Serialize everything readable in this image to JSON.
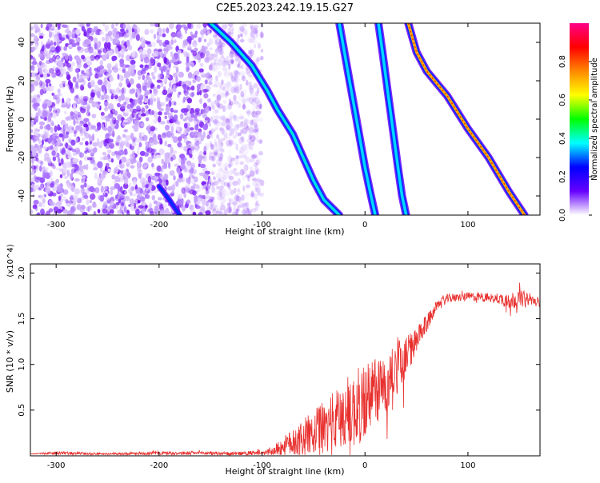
{
  "figure": {
    "title": "C2E5.2023.242.19.15.G27"
  },
  "chart_data": [
    {
      "type": "heatmap",
      "xlabel": "Height of straight line (km)",
      "ylabel": "Frequency (Hz)",
      "xlim": [
        -325,
        170
      ],
      "ylim": [
        -50,
        50
      ],
      "xticks": [
        -300,
        -200,
        -100,
        0,
        100
      ],
      "yticks": [
        -40,
        -20,
        0,
        20,
        40
      ],
      "grid": false,
      "colorbar": {
        "label": "Normalized spectral amplitude",
        "range": [
          0,
          1
        ],
        "ticks": [
          "0.0",
          "0.2",
          "0.4",
          "0.6",
          "0.8"
        ],
        "colors": [
          "#ffffff",
          "#6600ff",
          "#0000ff",
          "#00ffff",
          "#00ff00",
          "#ffff00",
          "#ff8800",
          "#ff0000",
          "#ff0088"
        ]
      },
      "traces": [
        {
          "points": [
            [
              -150,
              50
            ],
            [
              -130,
              40
            ],
            [
              -110,
              28
            ],
            [
              -95,
              15
            ],
            [
              -85,
              5
            ],
            [
              -70,
              -8
            ],
            [
              -60,
              -20
            ],
            [
              -50,
              -32
            ],
            [
              -40,
              -42
            ],
            [
              -25,
              -50
            ]
          ]
        },
        {
          "points": [
            [
              -25,
              50
            ],
            [
              -20,
              35
            ],
            [
              -15,
              20
            ],
            [
              -10,
              5
            ],
            [
              -5,
              -10
            ],
            [
              0,
              -25
            ],
            [
              5,
              -38
            ],
            [
              10,
              -50
            ]
          ]
        },
        {
          "points": [
            [
              13,
              50
            ],
            [
              17,
              35
            ],
            [
              22,
              15
            ],
            [
              27,
              -5
            ],
            [
              32,
              -25
            ],
            [
              36,
              -40
            ],
            [
              40,
              -50
            ]
          ]
        },
        {
          "points": [
            [
              42,
              50
            ],
            [
              50,
              35
            ],
            [
              60,
              25
            ],
            [
              80,
              12
            ],
            [
              100,
              -5
            ],
            [
              120,
              -20
            ],
            [
              140,
              -38
            ],
            [
              155,
              -50
            ]
          ]
        },
        {
          "points": [
            [
              -200,
              -35
            ],
            [
              -190,
              -42
            ],
            [
              -180,
              -50
            ]
          ]
        }
      ]
    },
    {
      "type": "line",
      "xlabel": "Height of straight line (km)",
      "ylabel": "SNR (10 * v/v)",
      "scale_note": "(x10^4)",
      "xlim": [
        -325,
        170
      ],
      "ylim": [
        0,
        2.1
      ],
      "xticks": [
        -300,
        -200,
        -100,
        0,
        100
      ],
      "yticks": [
        0.5,
        1.0,
        1.5,
        2.0
      ],
      "ytick_labels": [
        "0.5",
        "1.0",
        "1.5",
        "2.0"
      ],
      "grid": false,
      "color": "#e8302e",
      "series": [
        {
          "name": "",
          "x": [
            -325,
            -300,
            -250,
            -200,
            -150,
            -130,
            -100,
            -90,
            -80,
            -70,
            -60,
            -50,
            -40,
            -30,
            -20,
            -10,
            0,
            10,
            20,
            30,
            40,
            50,
            60,
            70,
            80,
            90,
            100,
            110,
            120,
            130,
            140,
            150,
            160,
            170
          ],
          "y": [
            0.02,
            0.03,
            0.02,
            0.03,
            0.03,
            0.02,
            0.03,
            0.05,
            0.1,
            0.15,
            0.2,
            0.25,
            0.3,
            0.35,
            0.45,
            0.5,
            0.6,
            0.7,
            0.8,
            0.95,
            1.1,
            1.25,
            1.45,
            1.65,
            1.72,
            1.73,
            1.74,
            1.74,
            1.73,
            1.72,
            1.7,
            1.72,
            1.71,
            1.68
          ],
          "noise": [
            0,
            0.02,
            0.01,
            0.02,
            0.02,
            0.02,
            0.03,
            0.05,
            0.1,
            0.15,
            0.2,
            0.25,
            0.3,
            0.35,
            0.4,
            0.42,
            0.45,
            0.4,
            0.35,
            0.3,
            0.22,
            0.15,
            0.1,
            0.05,
            0.05,
            0.04,
            0.05,
            0.05,
            0.05,
            0.06,
            0.1,
            0.1,
            0.06,
            0.05
          ]
        }
      ]
    }
  ]
}
